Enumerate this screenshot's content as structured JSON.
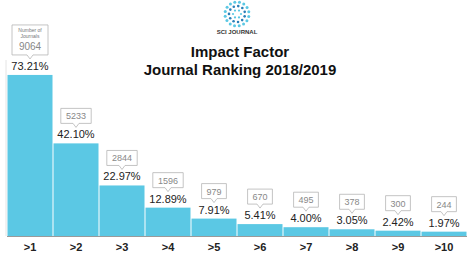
{
  "chart_data": {
    "type": "bar",
    "brand": "SCI JOURNAL",
    "title": "Impact Factor",
    "subtitle": "Journal Ranking 2018/2019",
    "categories": [
      ">1",
      ">2",
      ">3",
      ">4",
      ">5",
      ">6",
      ">7",
      ">8",
      ">9",
      ">10"
    ],
    "values": [
      73.21,
      42.1,
      22.97,
      12.89,
      7.91,
      5.41,
      4.0,
      3.05,
      2.42,
      1.97
    ],
    "value_labels": [
      "73.21%",
      "42.10%",
      "22.97%",
      "12.89%",
      "7.91%",
      "5.41%",
      "4.00%",
      "3.05%",
      "2.42%",
      "1.97%"
    ],
    "counts_label": "Number of Journals",
    "counts": [
      9064,
      5233,
      2844,
      1596,
      979,
      670,
      495,
      378,
      300,
      244
    ],
    "color": "#5bc8e4",
    "ylim": [
      0,
      80
    ],
    "grid": false,
    "data_labels": true,
    "tick_labels": "x"
  }
}
